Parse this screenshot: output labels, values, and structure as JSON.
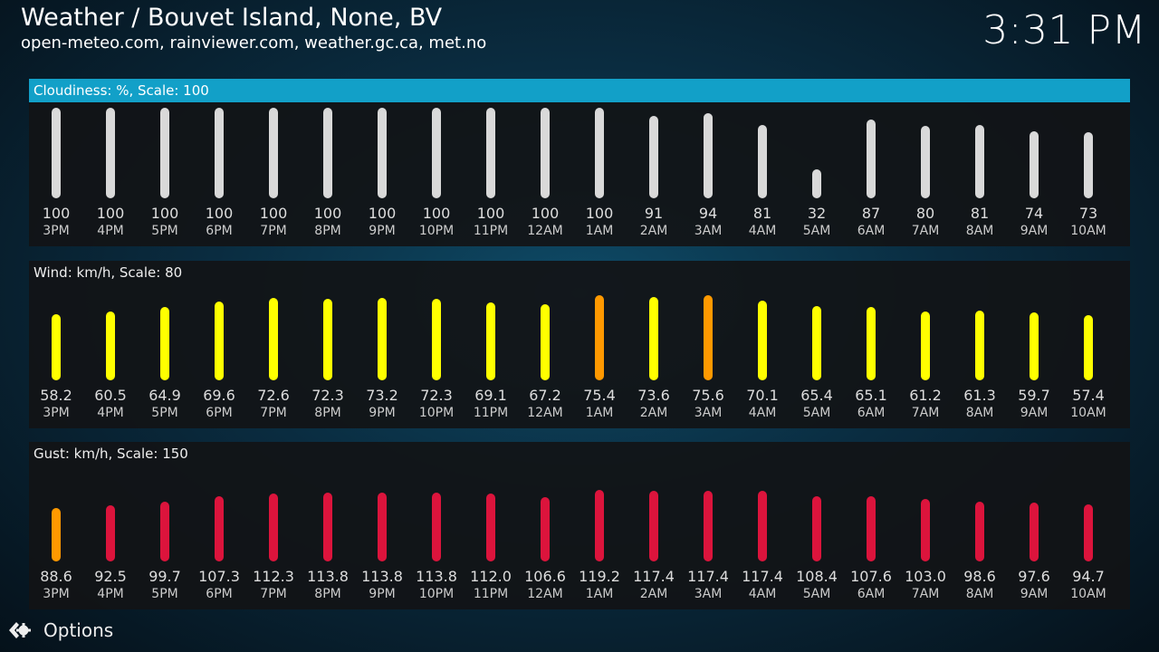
{
  "header": {
    "title": "Weather / Bouvet Island, None, BV",
    "subtitle": "open-meteo.com, rainviewer.com, weather.gc.ca, met.no",
    "clock": "3:31 PM"
  },
  "hours": [
    "3PM",
    "4PM",
    "5PM",
    "6PM",
    "7PM",
    "8PM",
    "9PM",
    "10PM",
    "11PM",
    "12AM",
    "1AM",
    "2AM",
    "3AM",
    "4AM",
    "5AM",
    "6AM",
    "7AM",
    "8AM",
    "9AM",
    "10AM"
  ],
  "panels": [
    {
      "id": "cloudiness",
      "label": "Cloudiness: %, Scale: 100",
      "scale": 100,
      "selected": true,
      "values": [
        "100",
        "100",
        "100",
        "100",
        "100",
        "100",
        "100",
        "100",
        "100",
        "100",
        "100",
        "91",
        "94",
        "81",
        "32",
        "87",
        "80",
        "81",
        "74",
        "73"
      ],
      "colors": [
        "#d9d9d9",
        "#d9d9d9",
        "#d9d9d9",
        "#d9d9d9",
        "#d9d9d9",
        "#d9d9d9",
        "#d9d9d9",
        "#d9d9d9",
        "#d9d9d9",
        "#d9d9d9",
        "#d9d9d9",
        "#d9d9d9",
        "#d9d9d9",
        "#d9d9d9",
        "#d9d9d9",
        "#d9d9d9",
        "#d9d9d9",
        "#d9d9d9",
        "#d9d9d9",
        "#d9d9d9"
      ]
    },
    {
      "id": "wind",
      "label": "Wind: km/h, Scale: 80",
      "scale": 80,
      "selected": false,
      "values": [
        "58.2",
        "60.5",
        "64.9",
        "69.6",
        "72.6",
        "72.3",
        "73.2",
        "72.3",
        "69.1",
        "67.2",
        "75.4",
        "73.6",
        "75.6",
        "70.1",
        "65.4",
        "65.1",
        "61.2",
        "61.3",
        "59.7",
        "57.4"
      ],
      "colors": [
        "#ffff00",
        "#ffff00",
        "#ffff00",
        "#ffff00",
        "#ffff00",
        "#ffff00",
        "#ffff00",
        "#ffff00",
        "#ffff00",
        "#ffff00",
        "#ff9900",
        "#ffff00",
        "#ff9900",
        "#ffff00",
        "#ffff00",
        "#ffff00",
        "#ffff00",
        "#ffff00",
        "#ffff00",
        "#ffff00"
      ]
    },
    {
      "id": "gust",
      "label": "Gust: km/h, Scale: 150",
      "scale": 150,
      "selected": false,
      "values": [
        "88.6",
        "92.5",
        "99.7",
        "107.3",
        "112.3",
        "113.8",
        "113.8",
        "113.8",
        "112.0",
        "106.6",
        "119.2",
        "117.4",
        "117.4",
        "117.4",
        "108.4",
        "107.6",
        "103.0",
        "98.6",
        "97.6",
        "94.7"
      ],
      "colors": [
        "#ff9900",
        "#dc143c",
        "#dc143c",
        "#dc143c",
        "#dc143c",
        "#dc143c",
        "#dc143c",
        "#dc143c",
        "#dc143c",
        "#dc143c",
        "#dc143c",
        "#dc143c",
        "#dc143c",
        "#dc143c",
        "#dc143c",
        "#dc143c",
        "#dc143c",
        "#dc143c",
        "#dc143c",
        "#dc143c"
      ]
    }
  ],
  "footer": {
    "options_label": "Options",
    "options_icon": "kodi-options-icon"
  }
}
